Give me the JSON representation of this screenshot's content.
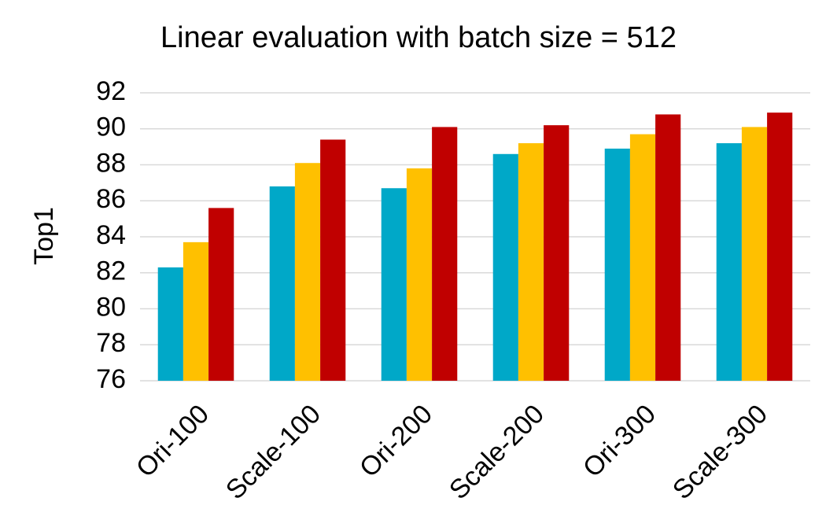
{
  "chart_data": {
    "type": "bar",
    "title": "Linear evaluation with batch size = 512",
    "y_label": "Top1",
    "categories": [
      "Ori-100",
      "Scale-100",
      "Ori-200",
      "Scale-200",
      "Ori-300",
      "Scale-300"
    ],
    "series": [
      {
        "color": "#00a8c8",
        "values": [
          82.3,
          86.8,
          86.7,
          88.6,
          88.9,
          89.2
        ]
      },
      {
        "color": "#ffc000",
        "values": [
          83.7,
          88.1,
          87.8,
          89.2,
          89.7,
          90.1
        ]
      },
      {
        "color": "#c00000",
        "values": [
          85.6,
          89.4,
          90.1,
          90.2,
          90.8,
          90.9
        ]
      }
    ],
    "ylim": [
      76,
      92
    ],
    "yticks": [
      76,
      78,
      80,
      82,
      84,
      86,
      88,
      90,
      92
    ],
    "grid": true
  }
}
